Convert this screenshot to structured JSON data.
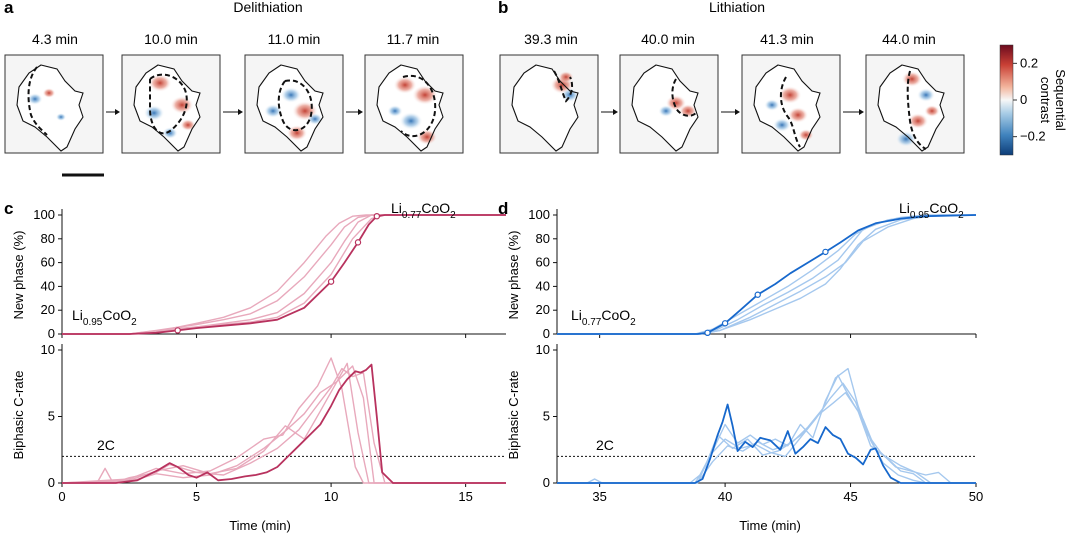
{
  "panels": {
    "a": {
      "letter": "a",
      "title": "Delithiation",
      "frames": [
        "4.3 min",
        "10.0 min",
        "11.0 min",
        "11.7 min"
      ]
    },
    "b": {
      "letter": "b",
      "title": "Lithiation",
      "frames": [
        "39.3 min",
        "40.0 min",
        "41.3 min",
        "44.0 min"
      ]
    },
    "c": {
      "letter": "c"
    },
    "d": {
      "letter": "d"
    }
  },
  "colorbar": {
    "label_line1": "Sequential",
    "label_line2": "contrast",
    "ticks": [
      "0.2",
      "0",
      "−0.2"
    ],
    "tick_values": [
      0.2,
      0,
      -0.2
    ],
    "range": [
      -0.3,
      0.3
    ],
    "colors": [
      "#0d3d78",
      "#3f82bd",
      "#a9cde6",
      "#f7f7f7",
      "#f3b49c",
      "#c94035",
      "#6b0b1e"
    ]
  },
  "colors": {
    "delith": "#b8325e",
    "delith_light": "#e8a9bc",
    "lith": "#1768cc",
    "lith_light": "#a5c8ee",
    "frame_bg": "#f5f5f5"
  },
  "chart_data": [
    {
      "type": "line",
      "panel": "c",
      "ylabel": "New phase (%)",
      "xlim": [
        0,
        16.5
      ],
      "ylim": [
        0,
        100
      ],
      "yticks": [
        0,
        20,
        40,
        60,
        80,
        100
      ],
      "annotations": [
        {
          "base": "Li",
          "sub": "0.95",
          "rest": "CoO",
          "sub2": "2"
        },
        {
          "base": "Li",
          "sub": "0.77",
          "rest": "CoO",
          "sub2": "2"
        }
      ],
      "main": {
        "x": [
          0,
          2.5,
          3.5,
          4.3,
          5,
          6,
          7,
          8,
          9,
          10,
          10.5,
          11,
          11.4,
          11.7,
          12,
          16.5
        ],
        "y": [
          0,
          0,
          1,
          3,
          5,
          7,
          9,
          12,
          22,
          44,
          60,
          77,
          92,
          99,
          100,
          100
        ]
      },
      "replicates": [
        {
          "x": [
            0,
            2.5,
            3.5,
            5,
            6,
            7,
            8,
            9,
            10,
            10.8,
            11.5,
            12,
            16.5
          ],
          "y": [
            0,
            0,
            2,
            6,
            8,
            10,
            14,
            26,
            50,
            80,
            97,
            100,
            100
          ]
        },
        {
          "x": [
            0,
            2.5,
            3.5,
            5,
            6,
            7,
            8,
            9,
            10,
            10.5,
            11,
            11.5,
            16.5
          ],
          "y": [
            0,
            0,
            3,
            8,
            12,
            17,
            28,
            48,
            75,
            90,
            98,
            100,
            100
          ]
        },
        {
          "x": [
            0,
            2.5,
            3.5,
            5,
            6,
            7,
            8,
            9,
            9.8,
            10.3,
            10.8,
            11.3,
            16.5
          ],
          "y": [
            0,
            0,
            2,
            9,
            14,
            22,
            36,
            60,
            82,
            93,
            99,
            100,
            100
          ]
        },
        {
          "x": [
            0,
            2.5,
            4,
            5,
            6,
            7,
            8,
            9,
            10,
            10.5,
            11,
            11.5,
            16.5
          ],
          "y": [
            0,
            0,
            4,
            6,
            9,
            12,
            18,
            34,
            60,
            78,
            94,
            100,
            100
          ]
        }
      ],
      "markers": {
        "x": [
          4.3,
          10.0,
          11.0,
          11.7
        ],
        "y": [
          3,
          44,
          77,
          99
        ]
      }
    },
    {
      "type": "line",
      "panel": "c",
      "xlabel": "Time (min)",
      "ylabel": "Biphasic C-rate",
      "xlim": [
        0,
        16.5
      ],
      "ylim": [
        0,
        10
      ],
      "xticks": [
        0,
        5,
        10,
        15
      ],
      "yticks": [
        0,
        5,
        10
      ],
      "reference": {
        "y": 2,
        "label": "2C"
      },
      "main": {
        "x": [
          0,
          2.0,
          2.8,
          3.2,
          3.6,
          4.0,
          4.3,
          4.7,
          5.0,
          5.4,
          5.8,
          6.3,
          6.8,
          7.2,
          7.6,
          8.0,
          8.4,
          8.8,
          9.2,
          9.6,
          10.0,
          10.3,
          10.6,
          10.9,
          11.1,
          11.3,
          11.5,
          11.7,
          11.9,
          12.3,
          16.5
        ],
        "y": [
          0,
          0,
          0.2,
          0.6,
          1.0,
          1.5,
          1.2,
          0.6,
          0.4,
          0.8,
          0.2,
          0.3,
          0.5,
          0.6,
          0.8,
          1.2,
          2.0,
          2.8,
          3.6,
          4.4,
          5.8,
          7.0,
          7.8,
          8.4,
          8.3,
          8.5,
          8.9,
          5.0,
          0.8,
          0,
          0
        ]
      },
      "replicates": [
        {
          "x": [
            0,
            1.3,
            1.6,
            1.9,
            2.5,
            3.5,
            4.0,
            5.0,
            6.0,
            7.0,
            8.0,
            8.8,
            9.4,
            10.0,
            10.4,
            10.8,
            11.2,
            11.6,
            12.0,
            16.5
          ],
          "y": [
            0,
            0,
            1.1,
            0,
            0.4,
            0.8,
            1.4,
            0.8,
            0.6,
            1.5,
            2.6,
            4.0,
            5.6,
            7.2,
            8.6,
            8.0,
            8.3,
            3.0,
            0,
            0
          ]
        },
        {
          "x": [
            0,
            2.5,
            3.5,
            4.5,
            5.5,
            6.5,
            7.5,
            8.3,
            9.0,
            9.6,
            10.1,
            10.6,
            11.0,
            11.4,
            16.5
          ],
          "y": [
            0,
            0.2,
            0.9,
            1.3,
            0.7,
            1.1,
            2.4,
            4.3,
            3.3,
            5.4,
            7.2,
            9.0,
            3.8,
            0,
            0
          ]
        },
        {
          "x": [
            0,
            2.5,
            3.5,
            4.5,
            5.5,
            6.5,
            7.5,
            8.2,
            8.8,
            9.5,
            10.0,
            10.4,
            10.9,
            11.2,
            16.5
          ],
          "y": [
            0,
            0.3,
            1.1,
            0.7,
            0.9,
            1.9,
            3.3,
            3.6,
            5.6,
            7.3,
            9.4,
            7.1,
            1.2,
            0,
            0
          ]
        },
        {
          "x": [
            0,
            2.5,
            3.5,
            4.5,
            5.5,
            6.5,
            7.5,
            8.3,
            9.0,
            9.6,
            10.2,
            10.8,
            11.2,
            11.6,
            16.5
          ],
          "y": [
            0,
            0.1,
            0.7,
            0.4,
            0.6,
            1.3,
            2.6,
            3.9,
            5.2,
            6.8,
            7.6,
            8.8,
            6.4,
            0,
            0
          ]
        }
      ]
    },
    {
      "type": "line",
      "panel": "d",
      "ylabel": "New phase (%)",
      "xlim": [
        33.3,
        50
      ],
      "ylim": [
        0,
        100
      ],
      "yticks": [
        0,
        20,
        40,
        60,
        80,
        100
      ],
      "annotations": [
        {
          "base": "Li",
          "sub": "0.77",
          "rest": "CoO",
          "sub2": "2"
        },
        {
          "base": "Li",
          "sub": "0.95",
          "rest": "CoO",
          "sub2": "2"
        }
      ],
      "main": {
        "x": [
          33.3,
          38.9,
          39.3,
          40.0,
          40.6,
          41.3,
          42.0,
          42.6,
          43.3,
          44.0,
          44.6,
          45.3,
          46.0,
          47.0,
          48.0,
          50
        ],
        "y": [
          0,
          0,
          1,
          9,
          20,
          33,
          42,
          51,
          60,
          69,
          77,
          87,
          93,
          97,
          99,
          100
        ]
      },
      "replicates": [
        {
          "x": [
            33.3,
            38.8,
            39.5,
            40.5,
            41.5,
            42.5,
            43.5,
            44.5,
            45.2,
            46.0,
            47.0,
            48.0,
            50
          ],
          "y": [
            0,
            0,
            4,
            16,
            28,
            40,
            54,
            70,
            84,
            93,
            98,
            100,
            100
          ]
        },
        {
          "x": [
            33.3,
            38.9,
            39.5,
            40.5,
            41.5,
            42.5,
            43.5,
            44.5,
            45.0,
            45.5,
            46.5,
            47.5,
            50
          ],
          "y": [
            0,
            0,
            2,
            12,
            24,
            35,
            47,
            62,
            75,
            88,
            96,
            99,
            100
          ]
        },
        {
          "x": [
            33.3,
            39.0,
            39.8,
            41.0,
            42.0,
            43.0,
            44.0,
            44.6,
            45.3,
            46.0,
            47.0,
            48.0,
            50
          ],
          "y": [
            0,
            0,
            3,
            12,
            21,
            30,
            42,
            55,
            75,
            88,
            96,
            99,
            100
          ]
        },
        {
          "x": [
            33.3,
            39.0,
            39.8,
            41.0,
            42.0,
            43.0,
            44.0,
            44.8,
            45.5,
            46.5,
            47.5,
            48.5,
            50
          ],
          "y": [
            0,
            0,
            3,
            14,
            25,
            36,
            48,
            60,
            78,
            90,
            97,
            100,
            100
          ]
        }
      ],
      "markers": {
        "x": [
          39.3,
          40.0,
          41.3,
          44.0
        ],
        "y": [
          1,
          9,
          33,
          69
        ]
      }
    },
    {
      "type": "line",
      "panel": "d",
      "xlabel": "Time (min)",
      "ylabel": "Biphasic C-rate",
      "xlim": [
        33.3,
        50
      ],
      "ylim": [
        0,
        10
      ],
      "xticks": [
        35,
        40,
        45,
        50
      ],
      "yticks": [
        0,
        5,
        10
      ],
      "reference": {
        "y": 2,
        "label": "2C"
      },
      "main": {
        "x": [
          33.3,
          38.8,
          39.1,
          39.4,
          39.7,
          39.9,
          40.1,
          40.3,
          40.5,
          40.8,
          41.1,
          41.4,
          41.8,
          42.2,
          42.5,
          42.8,
          43.1,
          43.4,
          43.7,
          44.0,
          44.3,
          44.6,
          44.9,
          45.2,
          45.5,
          45.8,
          46.0,
          46.3,
          46.6,
          47.0,
          48.0,
          50
        ],
        "y": [
          0,
          0,
          0.3,
          1.8,
          3.6,
          4.6,
          5.9,
          4.3,
          2.4,
          3.1,
          2.7,
          3.4,
          3.2,
          2.5,
          3.9,
          2.2,
          2.7,
          3.3,
          3.0,
          4.2,
          3.6,
          3.3,
          2.2,
          1.9,
          1.4,
          2.5,
          2.6,
          1.3,
          0.4,
          0,
          0,
          0
        ]
      },
      "replicates": [
        {
          "x": [
            33.3,
            34.5,
            34.8,
            35.1,
            38.6,
            39.0,
            39.5,
            40.0,
            40.5,
            41.0,
            41.5,
            42.0,
            42.5,
            43.0,
            43.5,
            44.0,
            44.5,
            44.8,
            45.1,
            45.5,
            46.0,
            46.5,
            47.0,
            47.5,
            48.0,
            50
          ],
          "y": [
            0,
            0,
            0.3,
            0,
            0,
            0.6,
            2.4,
            4.4,
            3.0,
            3.6,
            2.9,
            3.3,
            2.8,
            4.4,
            3.4,
            6.2,
            8.1,
            7.0,
            6.0,
            4.8,
            2.5,
            1.8,
            0.9,
            0.7,
            0,
            0
          ]
        },
        {
          "x": [
            33.3,
            38.8,
            39.2,
            39.7,
            40.3,
            40.9,
            41.5,
            42.1,
            42.7,
            43.3,
            43.9,
            44.4,
            44.9,
            45.3,
            45.8,
            46.3,
            46.9,
            47.5,
            48.0,
            50
          ],
          "y": [
            0,
            0,
            1.2,
            3.6,
            2.6,
            3.3,
            2.1,
            2.4,
            3.1,
            4.2,
            5.6,
            7.9,
            8.6,
            5.8,
            3.2,
            1.5,
            0.6,
            0.2,
            0,
            0
          ]
        },
        {
          "x": [
            33.3,
            38.9,
            39.4,
            40.0,
            40.6,
            41.2,
            41.8,
            42.4,
            43.0,
            43.6,
            44.2,
            44.7,
            45.2,
            45.7,
            46.2,
            46.8,
            47.4,
            48.0,
            48.5,
            49.0,
            50
          ],
          "y": [
            0,
            0,
            2.1,
            3.3,
            2.6,
            2.9,
            2.3,
            2.0,
            3.4,
            4.8,
            6.4,
            7.5,
            6.1,
            3.6,
            2.3,
            1.2,
            0.9,
            0.6,
            0.8,
            0,
            0
          ]
        },
        {
          "x": [
            33.3,
            38.9,
            39.5,
            40.1,
            40.7,
            41.3,
            41.9,
            42.5,
            43.1,
            43.7,
            44.3,
            44.8,
            45.3,
            45.8,
            46.3,
            47.0,
            47.6,
            48.2,
            50
          ],
          "y": [
            0,
            0,
            1.6,
            2.8,
            2.4,
            3.1,
            2.5,
            2.9,
            3.7,
            5.1,
            6.0,
            6.8,
            5.4,
            2.8,
            2.1,
            1.3,
            0.8,
            0,
            0
          ]
        }
      ]
    }
  ]
}
